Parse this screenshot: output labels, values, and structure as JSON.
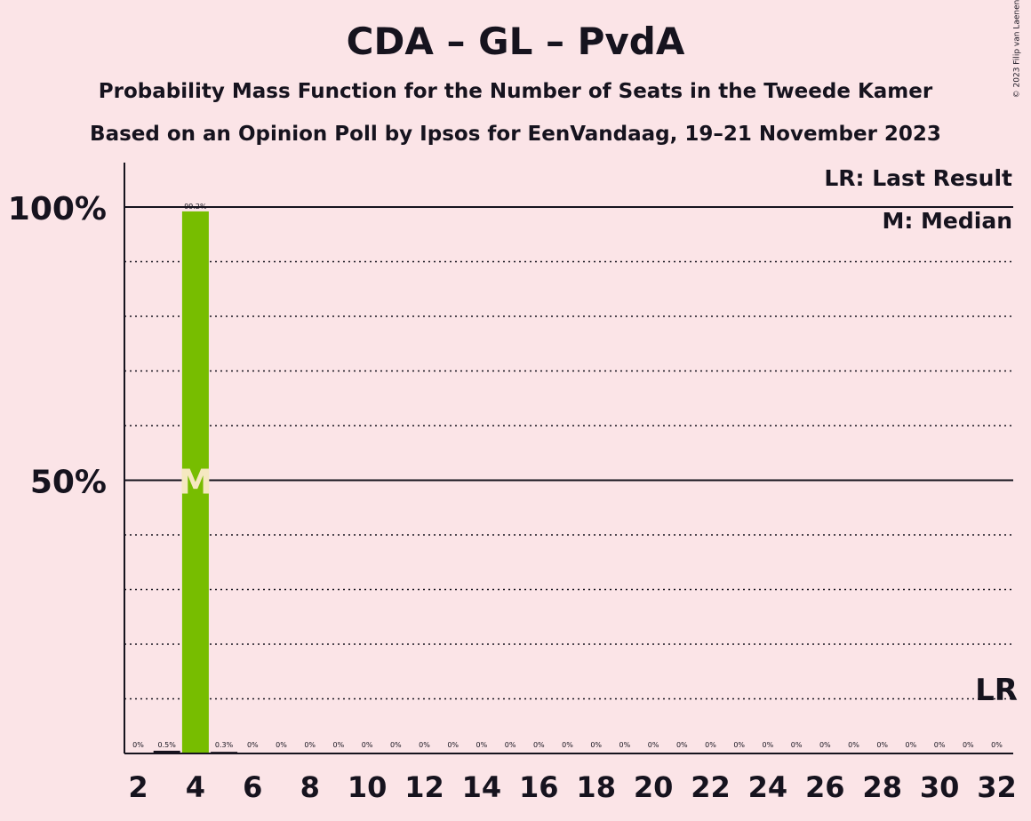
{
  "title": "CDA – GL – PvdA",
  "subtitle1": "Probability Mass Function for the Number of Seats in the Tweede Kamer",
  "subtitle2": "Based on an Opinion Poll by Ipsos for EenVandaag, 19–21 November 2023",
  "copyright": "© 2023 Filip van Laenen",
  "legend": {
    "last_result": "LR: Last Result",
    "median": "M: Median"
  },
  "markers": {
    "median_label": "M",
    "last_result_label": "LR"
  },
  "chart_data": {
    "type": "bar",
    "x": [
      2,
      3,
      4,
      5,
      6,
      7,
      8,
      9,
      10,
      11,
      12,
      13,
      14,
      15,
      16,
      17,
      18,
      19,
      20,
      21,
      22,
      23,
      24,
      25,
      26,
      27,
      28,
      29,
      30,
      31,
      32
    ],
    "values": [
      0,
      0.5,
      99.2,
      0.3,
      0,
      0,
      0,
      0,
      0,
      0,
      0,
      0,
      0,
      0,
      0,
      0,
      0,
      0,
      0,
      0,
      0,
      0,
      0,
      0,
      0,
      0,
      0,
      0,
      0,
      0,
      0
    ],
    "value_labels": [
      "0%",
      "0.5%",
      "99.2%",
      "0.3%",
      "0%",
      "0%",
      "0%",
      "0%",
      "0%",
      "0%",
      "0%",
      "0%",
      "0%",
      "0%",
      "0%",
      "0%",
      "0%",
      "0%",
      "0%",
      "0%",
      "0%",
      "0%",
      "0%",
      "0%",
      "0%",
      "0%",
      "0%",
      "0%",
      "0%",
      "0%",
      "0%"
    ],
    "x_tick_labels": [
      "2",
      "4",
      "6",
      "8",
      "10",
      "12",
      "14",
      "16",
      "18",
      "20",
      "22",
      "24",
      "26",
      "28",
      "30",
      "32"
    ],
    "y_tick_labels": [
      "50%",
      "100%"
    ],
    "ylim": [
      0,
      100
    ],
    "median_seat": 4,
    "last_result_seat": 32,
    "bar_color": "#77bd00",
    "median_label_color": "#f5e8c0",
    "grid": "dotted every 10%",
    "legend_position": "top-right"
  }
}
